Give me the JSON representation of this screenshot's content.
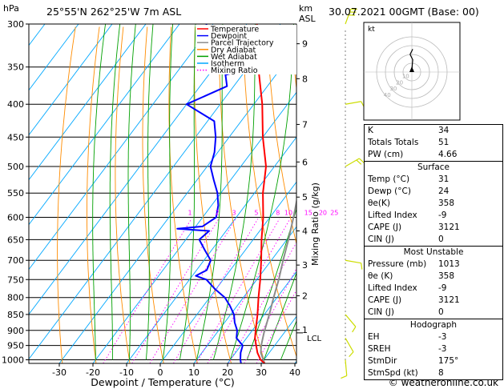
{
  "header": {
    "title": "25°55'N  262°25'W  7m  ASL",
    "datetime": "30.07.2021  00GMT  (Base: 00)",
    "hpa_label": "hPa",
    "km_label": "km",
    "asl_label": "ASL"
  },
  "axes": {
    "xlabel": "Dewpoint / Temperature (°C)",
    "mixing_label": "Mixing Ratio (g/kg)",
    "lcl_label": "LCL",
    "copyright": "© weatheronline.co.uk"
  },
  "legend": [
    "Temperature",
    "Dewpoint",
    "Parcel Trajectory",
    "Dry Adiabat",
    "Wet Adiabat",
    "Isotherm",
    "Mixing Ratio"
  ],
  "colors": {
    "temperature": "#ff0000",
    "dewpoint": "#0000ff",
    "parcel": "#8c8c8c",
    "dry_adiabat": "#ff8c00",
    "wet_adiabat": "#00a000",
    "isotherm": "#00a8ff",
    "mixing_ratio": "#ff00ff",
    "wind": "#ccdd00"
  },
  "chart_data": {
    "type": "skew-t",
    "pressure_levels": [
      300,
      350,
      400,
      450,
      500,
      550,
      600,
      650,
      700,
      750,
      800,
      850,
      900,
      950,
      1000
    ],
    "x_ticks": [
      -30,
      -20,
      -10,
      0,
      10,
      20,
      30,
      40
    ],
    "xlim": [
      -40,
      40
    ],
    "ylim": [
      1013,
      300
    ],
    "km_ticks": [
      {
        "label": "9",
        "p": 322
      },
      {
        "label": "8",
        "p": 365
      },
      {
        "label": "7",
        "p": 430
      },
      {
        "label": "6",
        "p": 492
      },
      {
        "label": "5",
        "p": 558
      },
      {
        "label": "4",
        "p": 630
      },
      {
        "label": "3",
        "p": 712
      },
      {
        "label": "2",
        "p": 795
      },
      {
        "label": "1",
        "p": 898
      }
    ],
    "mixing_ratio_values": [
      1,
      2,
      3,
      5,
      8,
      10,
      15,
      20,
      25
    ],
    "mixing_ratio_labels": [
      "1",
      "2",
      "3",
      "5",
      "8",
      "10",
      "15",
      "20",
      "25"
    ],
    "lcl_pressure": 908,
    "temperature": {
      "name": "Temperature",
      "p": [
        1013,
        1000,
        975,
        950,
        925,
        900,
        875,
        850,
        800,
        750,
        700,
        650,
        600,
        550,
        500,
        450,
        400,
        350,
        300
      ],
      "t": [
        31,
        29,
        26.5,
        24.5,
        22.5,
        21,
        19.5,
        18,
        14.5,
        11,
        7,
        2.5,
        -2,
        -7.5,
        -12.5,
        -20,
        -27.5,
        -37,
        -47
      ]
    },
    "dewpoint": {
      "name": "Dewpoint",
      "p": [
        1013,
        1000,
        975,
        950,
        925,
        900,
        875,
        850,
        825,
        800,
        775,
        750,
        740,
        725,
        700,
        675,
        650,
        630,
        625,
        620,
        600,
        575,
        550,
        525,
        500,
        475,
        450,
        425,
        400,
        375,
        360,
        350,
        330,
        320,
        300
      ],
      "t": [
        24,
        23,
        21.5,
        20.5,
        17,
        15.5,
        13,
        11,
        8,
        4.5,
        -0.5,
        -5,
        -9,
        -7,
        -8,
        -12,
        -16,
        -15,
        -25,
        -18,
        -16,
        -18,
        -21,
        -25,
        -29,
        -31,
        -34,
        -38,
        -50,
        -42,
        -45,
        -38,
        -52,
        -58,
        -62
      ]
    },
    "parcel": {
      "name": "Parcel Trajectory",
      "p": [
        1013,
        975,
        950,
        908,
        850,
        800,
        750,
        700,
        650,
        600,
        550,
        500,
        450,
        400,
        350,
        300
      ],
      "t": [
        31,
        27.5,
        26,
        24,
        21.5,
        19,
        16.5,
        13.5,
        10.5,
        7,
        3,
        -1.5,
        -7,
        -13.5,
        -21.5,
        -31
      ]
    },
    "wind_barbs": [
      {
        "p": 1000,
        "dir": 175,
        "spd": 8
      },
      {
        "p": 925,
        "dir": 150,
        "spd": 10
      },
      {
        "p": 850,
        "dir": 140,
        "spd": 10
      },
      {
        "p": 700,
        "dir": 100,
        "spd": 10
      },
      {
        "p": 500,
        "dir": 60,
        "spd": 15
      },
      {
        "p": 400,
        "dir": 80,
        "spd": 5
      },
      {
        "p": 300,
        "dir": 20,
        "spd": 25
      }
    ],
    "hodograph": {
      "unit_label": "kt",
      "rings": [
        "10",
        "20",
        "30",
        "40"
      ],
      "points": [
        [
          0,
          0
        ],
        [
          0.5,
          8
        ],
        [
          1,
          14
        ],
        [
          -2,
          20
        ],
        [
          1,
          26
        ]
      ]
    }
  },
  "indices": {
    "basic": [
      {
        "label": "K",
        "value": "34"
      },
      {
        "label": "Totals Totals",
        "value": "51"
      },
      {
        "label": "PW (cm)",
        "value": "4.66"
      }
    ],
    "surface": {
      "title": "Surface",
      "rows": [
        {
          "label": "Temp (°C)",
          "value": "31"
        },
        {
          "label": "Dewp (°C)",
          "value": "24"
        },
        {
          "label": "θe(K)",
          "value": "358"
        },
        {
          "label": "Lifted Index",
          "value": "-9"
        },
        {
          "label": "CAPE (J)",
          "value": "3121"
        },
        {
          "label": "CIN (J)",
          "value": "0"
        }
      ]
    },
    "most_unstable": {
      "title": "Most Unstable",
      "rows": [
        {
          "label": "Pressure (mb)",
          "value": "1013"
        },
        {
          "label": "θe (K)",
          "value": "358"
        },
        {
          "label": "Lifted Index",
          "value": "-9"
        },
        {
          "label": "CAPE (J)",
          "value": "3121"
        },
        {
          "label": "CIN (J)",
          "value": "0"
        }
      ]
    },
    "hodograph": {
      "title": "Hodograph",
      "rows": [
        {
          "label": "EH",
          "value": "-3"
        },
        {
          "label": "SREH",
          "value": "-3"
        },
        {
          "label": "StmDir",
          "value": "175°"
        },
        {
          "label": "StmSpd (kt)",
          "value": "8"
        }
      ]
    }
  }
}
